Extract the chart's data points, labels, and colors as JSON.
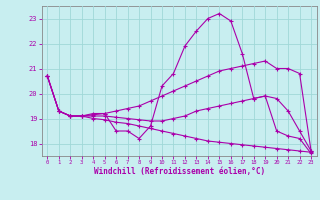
{
  "xlabel": "Windchill (Refroidissement éolien,°C)",
  "background_color": "#c8eef0",
  "grid_color": "#a0d8d8",
  "line_color": "#aa00aa",
  "spine_color": "#888888",
  "xlim": [
    -0.5,
    23.5
  ],
  "ylim": [
    17.5,
    23.5
  ],
  "yticks": [
    18,
    19,
    20,
    21,
    22,
    23
  ],
  "xticks": [
    0,
    1,
    2,
    3,
    4,
    5,
    6,
    7,
    8,
    9,
    10,
    11,
    12,
    13,
    14,
    15,
    16,
    17,
    18,
    19,
    20,
    21,
    22,
    23
  ],
  "series": [
    {
      "x": [
        0,
        1,
        2,
        3,
        4,
        5,
        6,
        7,
        8,
        9,
        10,
        11,
        12,
        13,
        14,
        15,
        16,
        17,
        18,
        19,
        20,
        21,
        22,
        23
      ],
      "y": [
        20.7,
        19.3,
        19.1,
        19.1,
        19.2,
        19.2,
        18.5,
        18.5,
        18.2,
        18.7,
        20.3,
        20.8,
        21.9,
        22.5,
        23.0,
        23.2,
        22.9,
        21.6,
        19.8,
        19.9,
        18.5,
        18.3,
        18.2,
        17.6
      ]
    },
    {
      "x": [
        0,
        1,
        2,
        3,
        4,
        5,
        6,
        7,
        8,
        9,
        10,
        11,
        12,
        13,
        14,
        15,
        16,
        17,
        18,
        19,
        20,
        21,
        22,
        23
      ],
      "y": [
        20.7,
        19.3,
        19.1,
        19.1,
        19.15,
        19.2,
        19.3,
        19.4,
        19.5,
        19.7,
        19.9,
        20.1,
        20.3,
        20.5,
        20.7,
        20.9,
        21.0,
        21.1,
        21.2,
        21.3,
        21.0,
        21.0,
        20.8,
        17.7
      ]
    },
    {
      "x": [
        0,
        1,
        2,
        3,
        4,
        5,
        6,
        7,
        8,
        9,
        10,
        11,
        12,
        13,
        14,
        15,
        16,
        17,
        18,
        19,
        20,
        21,
        22,
        23
      ],
      "y": [
        20.7,
        19.3,
        19.1,
        19.1,
        19.1,
        19.1,
        19.05,
        19.0,
        18.95,
        18.9,
        18.9,
        19.0,
        19.1,
        19.3,
        19.4,
        19.5,
        19.6,
        19.7,
        19.8,
        19.9,
        19.8,
        19.3,
        18.5,
        17.7
      ]
    },
    {
      "x": [
        0,
        1,
        2,
        3,
        4,
        5,
        6,
        7,
        8,
        9,
        10,
        11,
        12,
        13,
        14,
        15,
        16,
        17,
        18,
        19,
        20,
        21,
        22,
        23
      ],
      "y": [
        20.7,
        19.3,
        19.1,
        19.1,
        19.0,
        18.95,
        18.85,
        18.8,
        18.7,
        18.6,
        18.5,
        18.4,
        18.3,
        18.2,
        18.1,
        18.05,
        18.0,
        17.95,
        17.9,
        17.85,
        17.8,
        17.75,
        17.7,
        17.65
      ]
    }
  ]
}
